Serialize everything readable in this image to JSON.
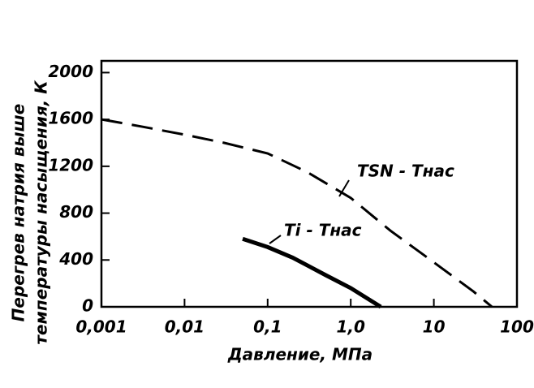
{
  "chart_data": {
    "type": "line",
    "y_label_lines": [
      "Перегрев натрия выше",
      "температуры насыщения, К"
    ],
    "x_label": "Давление, МПа",
    "xscale": "log",
    "xlim": [
      0.001,
      100
    ],
    "xticks": [
      {
        "value": 0.001,
        "label": "0,001"
      },
      {
        "value": 0.01,
        "label": "0,01"
      },
      {
        "value": 0.1,
        "label": "0,1"
      },
      {
        "value": 1,
        "label": "1,0"
      },
      10,
      100
    ],
    "ylim": [
      0,
      2100
    ],
    "yticks": [
      0,
      400,
      800,
      1200,
      1600,
      2000
    ],
    "grid": false,
    "series": [
      {
        "name": "TSN - Tнас",
        "color": "#000000",
        "style": "dashed",
        "x": [
          0.001,
          0.003,
          0.01,
          0.03,
          0.1,
          0.3,
          1,
          3,
          10,
          30,
          50
        ],
        "values": [
          1600,
          1540,
          1470,
          1400,
          1310,
          1150,
          930,
          650,
          380,
          130,
          0
        ]
      },
      {
        "name": "Ti - Tнас",
        "color": "#000000",
        "style": "solid",
        "x": [
          0.05,
          0.1,
          0.2,
          0.5,
          1,
          2.3
        ],
        "values": [
          580,
          510,
          420,
          270,
          160,
          0
        ]
      }
    ]
  }
}
